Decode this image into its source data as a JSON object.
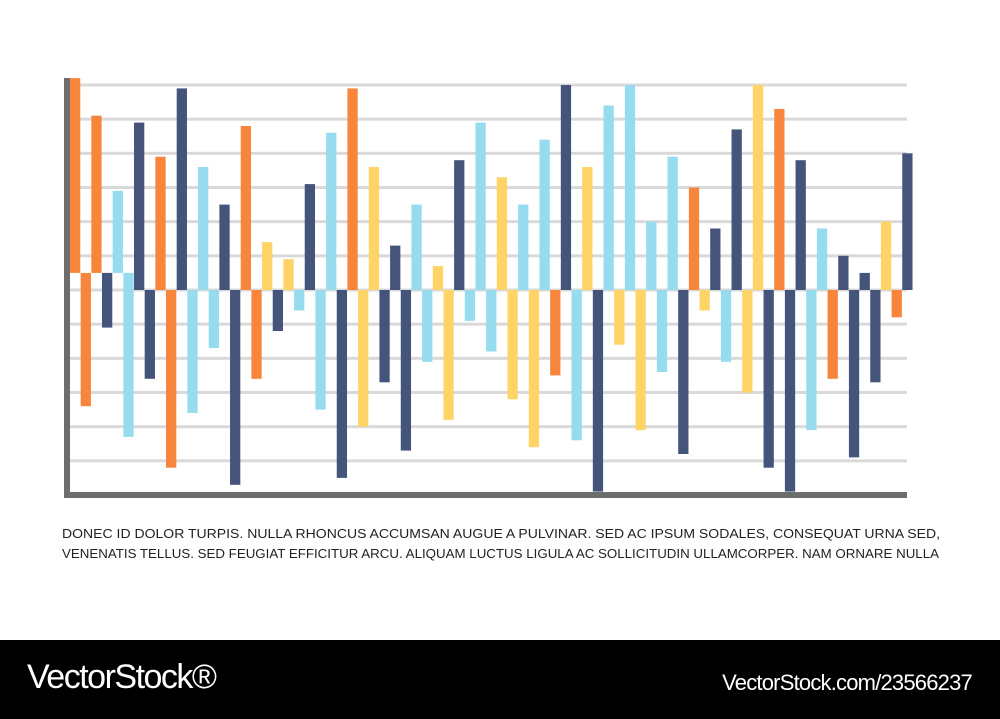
{
  "chart_data": {
    "type": "bar",
    "title": "",
    "xlabel": "",
    "ylabel": "",
    "ylim": [
      -6,
      6
    ],
    "grid": true,
    "gridlines": [
      6,
      5,
      4,
      3,
      2,
      1,
      0,
      -1,
      -2,
      -3,
      -4,
      -5
    ],
    "colors": {
      "O": "#F7863C",
      "N": "#45547A",
      "C": "#96DBEE",
      "Y": "#FFD466"
    },
    "bars": [
      {
        "c": "O",
        "from": 0.5,
        "to": 6.2
      },
      {
        "c": "O",
        "from": 0.5,
        "to": -3.4
      },
      {
        "c": "O",
        "from": 0.5,
        "to": 5.1
      },
      {
        "c": "N",
        "from": 0.5,
        "to": -1.1
      },
      {
        "c": "C",
        "from": 0.5,
        "to": 2.9
      },
      {
        "c": "C",
        "from": 0.5,
        "to": -4.3
      },
      {
        "c": "N",
        "from": 0,
        "to": 4.9
      },
      {
        "c": "N",
        "from": 0,
        "to": -2.6
      },
      {
        "c": "O",
        "from": 0,
        "to": 3.9
      },
      {
        "c": "O",
        "from": 0,
        "to": -5.2
      },
      {
        "c": "N",
        "from": 0,
        "to": 5.9
      },
      {
        "c": "C",
        "from": 0,
        "to": -3.6
      },
      {
        "c": "C",
        "from": 0,
        "to": 3.6
      },
      {
        "c": "C",
        "from": 0,
        "to": -1.7
      },
      {
        "c": "N",
        "from": 0,
        "to": 2.5
      },
      {
        "c": "N",
        "from": 0,
        "to": -5.7
      },
      {
        "c": "O",
        "from": 0,
        "to": 4.8
      },
      {
        "c": "O",
        "from": 0,
        "to": -2.6
      },
      {
        "c": "Y",
        "from": 0,
        "to": 1.4
      },
      {
        "c": "N",
        "from": 0,
        "to": -1.2
      },
      {
        "c": "Y",
        "from": 0,
        "to": 0.9
      },
      {
        "c": "C",
        "from": 0,
        "to": -0.6
      },
      {
        "c": "N",
        "from": 0,
        "to": 3.1
      },
      {
        "c": "C",
        "from": 0,
        "to": -3.5
      },
      {
        "c": "C",
        "from": 0,
        "to": 4.6
      },
      {
        "c": "N",
        "from": 0,
        "to": -5.5
      },
      {
        "c": "O",
        "from": 0,
        "to": 5.9
      },
      {
        "c": "Y",
        "from": 0,
        "to": -4.0
      },
      {
        "c": "Y",
        "from": 0,
        "to": 3.6
      },
      {
        "c": "N",
        "from": 0,
        "to": -2.7
      },
      {
        "c": "N",
        "from": 0,
        "to": 1.3
      },
      {
        "c": "N",
        "from": 0,
        "to": -4.7
      },
      {
        "c": "C",
        "from": 0,
        "to": 2.5
      },
      {
        "c": "C",
        "from": 0,
        "to": -2.1
      },
      {
        "c": "Y",
        "from": 0,
        "to": 0.7
      },
      {
        "c": "Y",
        "from": 0,
        "to": -3.8
      },
      {
        "c": "N",
        "from": 0,
        "to": 3.8
      },
      {
        "c": "C",
        "from": 0,
        "to": -0.9
      },
      {
        "c": "C",
        "from": 0,
        "to": 4.9
      },
      {
        "c": "C",
        "from": 0,
        "to": -1.8
      },
      {
        "c": "Y",
        "from": 0,
        "to": 3.3
      },
      {
        "c": "Y",
        "from": 0,
        "to": -3.2
      },
      {
        "c": "C",
        "from": 0,
        "to": 2.5
      },
      {
        "c": "Y",
        "from": 0,
        "to": -4.6
      },
      {
        "c": "C",
        "from": 0,
        "to": 4.4
      },
      {
        "c": "O",
        "from": 0,
        "to": -2.5
      },
      {
        "c": "N",
        "from": 0,
        "to": 6.0
      },
      {
        "c": "C",
        "from": 0,
        "to": -4.4
      },
      {
        "c": "Y",
        "from": 0,
        "to": 3.6
      },
      {
        "c": "N",
        "from": 0,
        "to": -5.9
      },
      {
        "c": "C",
        "from": 0,
        "to": 5.4
      },
      {
        "c": "Y",
        "from": 0,
        "to": -1.6
      },
      {
        "c": "C",
        "from": 0,
        "to": 6.0
      },
      {
        "c": "Y",
        "from": 0,
        "to": -4.1
      },
      {
        "c": "C",
        "from": 0,
        "to": 2.0
      },
      {
        "c": "C",
        "from": 0,
        "to": -2.4
      },
      {
        "c": "C",
        "from": 0,
        "to": 3.9
      },
      {
        "c": "N",
        "from": 0,
        "to": -4.8
      },
      {
        "c": "O",
        "from": 0,
        "to": 3.0
      },
      {
        "c": "Y",
        "from": 0,
        "to": -0.6
      },
      {
        "c": "N",
        "from": 0,
        "to": 1.8
      },
      {
        "c": "C",
        "from": 0,
        "to": -2.1
      },
      {
        "c": "N",
        "from": 0,
        "to": 4.7
      },
      {
        "c": "Y",
        "from": 0,
        "to": -3.0
      },
      {
        "c": "Y",
        "from": 0,
        "to": 6.0
      },
      {
        "c": "N",
        "from": 0,
        "to": -5.2
      },
      {
        "c": "O",
        "from": 0,
        "to": 5.3
      },
      {
        "c": "N",
        "from": 0,
        "to": -5.9
      },
      {
        "c": "N",
        "from": 0,
        "to": 3.8
      },
      {
        "c": "C",
        "from": 0,
        "to": -4.1
      },
      {
        "c": "C",
        "from": 0,
        "to": 1.8
      },
      {
        "c": "O",
        "from": 0,
        "to": -2.6
      },
      {
        "c": "N",
        "from": 0,
        "to": 1.0
      },
      {
        "c": "N",
        "from": 0,
        "to": -4.9
      },
      {
        "c": "N",
        "from": 0,
        "to": 0.5
      },
      {
        "c": "N",
        "from": 0,
        "to": -2.7
      },
      {
        "c": "Y",
        "from": 0,
        "to": 2.0
      },
      {
        "c": "O",
        "from": 0,
        "to": -0.8
      },
      {
        "c": "N",
        "from": 0,
        "to": 4.0
      }
    ],
    "caption_lines": [
      "DONEC ID DOLOR TURPIS. NULLA RHONCUS ACCUMSAN AUGUE A PULVINAR. SED AC IPSUM SODALES, CONSEQUAT URNA SED,",
      "VENENATIS TELLUS. SED FEUGIAT EFFICITUR ARCU. ALIQUAM LUCTUS LIGULA AC SOLLICITUDIN ULLAMCORPER. NAM ORNARE NULLA"
    ]
  },
  "footer": {
    "logo": "VectorStock®",
    "url": "VectorStock.com/23566237"
  }
}
